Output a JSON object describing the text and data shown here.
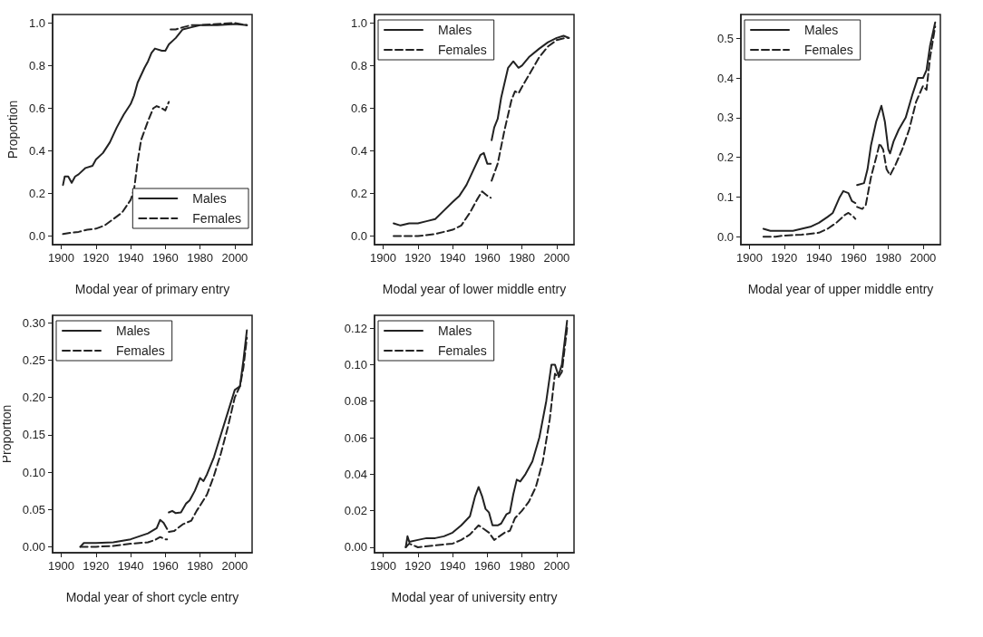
{
  "chart_data": [
    {
      "type": "line",
      "ylabel": "Proportion",
      "xlabel": "Modal year of primary entry",
      "xlim": [
        1895,
        2010
      ],
      "xticks": [
        1900,
        1920,
        1940,
        1960,
        1980,
        2000
      ],
      "ylim": [
        -0.04,
        1.04
      ],
      "yticks": [
        {
          "value": 0,
          "label": "0.0"
        },
        0.2,
        0.4,
        0.6,
        0.8,
        {
          "value": 1,
          "label": "1.0"
        }
      ],
      "grid": false,
      "legend": "bottom right",
      "marker": "none",
      "series": [
        {
          "name": "Males",
          "color": "#222222",
          "line_style": "solid",
          "x": [
            1901,
            1902,
            1904,
            1906,
            1908,
            1910,
            1914,
            1918,
            1920,
            1924,
            1928,
            1932,
            1936,
            1940,
            1942,
            1944,
            1948,
            1950,
            1952,
            1954,
            1958,
            1960,
            1962,
            1966,
            1970,
            1975,
            1980,
            1990,
            2000,
            2007
          ],
          "values": [
            0.24,
            0.28,
            0.28,
            0.25,
            0.28,
            0.29,
            0.32,
            0.33,
            0.36,
            0.39,
            0.44,
            0.51,
            0.57,
            0.62,
            0.66,
            0.72,
            0.79,
            0.82,
            0.86,
            0.88,
            0.87,
            0.87,
            0.9,
            0.93,
            0.97,
            0.98,
            0.99,
            0.99,
            0.995,
            0.99
          ]
        },
        {
          "name": "Females",
          "color": "#222222",
          "line_style": "dashed",
          "x": [
            1901,
            1905,
            1910,
            1915,
            1920,
            1925,
            1930,
            1935,
            1940,
            1942,
            1944,
            1946,
            1950,
            1953,
            1955,
            1958,
            1960,
            1962,
            1962.5,
            1963,
            1966,
            1970,
            1975,
            1980,
            2000,
            2007
          ],
          "values": [
            0.01,
            0.015,
            0.02,
            0.03,
            0.035,
            0.05,
            0.08,
            0.11,
            0.17,
            0.22,
            0.35,
            0.45,
            0.54,
            0.6,
            0.61,
            0.6,
            0.59,
            0.63,
            null,
            0.97,
            0.97,
            0.98,
            0.99,
            0.99,
            1.0,
            0.99
          ]
        }
      ]
    },
    {
      "type": "line",
      "xlabel": "Modal year of lower middle entry",
      "xlim": [
        1895,
        2010
      ],
      "xticks": [
        1900,
        1920,
        1940,
        1960,
        1980,
        2000
      ],
      "ylim": [
        -0.04,
        1.04
      ],
      "yticks": [
        {
          "value": 0,
          "label": "0.0"
        },
        0.2,
        0.4,
        0.6,
        0.8,
        {
          "value": 1,
          "label": "1.0"
        }
      ],
      "grid": false,
      "legend": "top left",
      "marker": "none",
      "series": [
        {
          "name": "Males",
          "color": "#222222",
          "line_style": "solid",
          "x": [
            1906,
            1910,
            1915,
            1920,
            1925,
            1930,
            1935,
            1940,
            1944,
            1948,
            1952,
            1956,
            1958,
            1960,
            1962,
            1962.3,
            1962.5,
            1964,
            1966,
            1968,
            1970,
            1972,
            1975,
            1978,
            1980,
            1984,
            1990,
            1995,
            2000,
            2004,
            2007
          ],
          "values": [
            0.06,
            0.05,
            0.06,
            0.06,
            0.07,
            0.08,
            0.12,
            0.16,
            0.19,
            0.24,
            0.31,
            0.38,
            0.39,
            0.34,
            0.34,
            null,
            0.45,
            0.51,
            0.55,
            0.65,
            0.72,
            0.79,
            0.82,
            0.79,
            0.8,
            0.84,
            0.88,
            0.91,
            0.93,
            0.94,
            0.93
          ]
        },
        {
          "name": "Females",
          "color": "#222222",
          "line_style": "dashed",
          "x": [
            1906,
            1915,
            1920,
            1930,
            1940,
            1945,
            1950,
            1954,
            1957,
            1960,
            1962,
            1962.3,
            1962.5,
            1966,
            1970,
            1974,
            1976,
            1978,
            1980,
            1985,
            1990,
            1995,
            2000,
            2005,
            2007
          ],
          "values": [
            0,
            0,
            0,
            0.01,
            0.03,
            0.05,
            0.11,
            0.17,
            0.21,
            0.19,
            0.18,
            null,
            0.26,
            0.34,
            0.5,
            0.64,
            0.68,
            0.67,
            0.7,
            0.77,
            0.84,
            0.89,
            0.92,
            0.93,
            0.93
          ]
        }
      ]
    },
    {
      "type": "line",
      "xlabel": "Modal year of upper middle entry",
      "xlim": [
        1895,
        2010
      ],
      "xticks": [
        1900,
        1920,
        1940,
        1960,
        1980,
        2000
      ],
      "ylim": [
        -0.02,
        0.56
      ],
      "yticks": [
        {
          "value": 0,
          "label": "0.0"
        },
        0.1,
        0.2,
        0.3,
        0.4,
        0.5
      ],
      "grid": false,
      "legend": "top left",
      "marker": "none",
      "series": [
        {
          "name": "Males",
          "color": "#222222",
          "line_style": "solid",
          "x": [
            1908,
            1912,
            1920,
            1925,
            1930,
            1935,
            1940,
            1945,
            1948,
            1952,
            1954,
            1957,
            1959,
            1961,
            1961.5,
            1962,
            1966,
            1968,
            1970,
            1973,
            1976,
            1978,
            1980,
            1981,
            1983,
            1986,
            1990,
            1994,
            1997,
            2000,
            2002,
            2004,
            2007
          ],
          "values": [
            0.02,
            0.015,
            0.015,
            0.015,
            0.02,
            0.025,
            0.035,
            0.05,
            0.06,
            0.1,
            0.115,
            0.11,
            0.09,
            0.085,
            null,
            0.13,
            0.135,
            0.17,
            0.23,
            0.29,
            0.33,
            0.29,
            0.22,
            0.21,
            0.24,
            0.27,
            0.3,
            0.36,
            0.4,
            0.4,
            0.42,
            0.48,
            0.54
          ]
        },
        {
          "name": "Females",
          "color": "#222222",
          "line_style": "dashed",
          "x": [
            1908,
            1915,
            1920,
            1930,
            1940,
            1945,
            1950,
            1955,
            1957,
            1960,
            1961,
            1961.5,
            1962,
            1965,
            1967,
            1970,
            1973,
            1975,
            1977,
            1979,
            1981,
            1984,
            1988,
            1992,
            1996,
            2000,
            2002,
            2004,
            2007
          ],
          "values": [
            0,
            0,
            0.003,
            0.005,
            0.01,
            0.02,
            0.035,
            0.055,
            0.06,
            0.05,
            0.045,
            null,
            0.075,
            0.07,
            0.08,
            0.15,
            0.2,
            0.235,
            0.22,
            0.17,
            0.155,
            0.18,
            0.22,
            0.27,
            0.34,
            0.38,
            0.37,
            0.45,
            0.53
          ]
        }
      ]
    },
    {
      "type": "line",
      "ylabel": "Proportion",
      "xlabel": "Modal year of short cycle entry",
      "xlim": [
        1895,
        2010
      ],
      "xticks": [
        1900,
        1920,
        1940,
        1960,
        1980,
        2000
      ],
      "ylim": [
        -0.008,
        0.31
      ],
      "yticks": [
        {
          "value": 0,
          "label": "0.00"
        },
        0.05,
        {
          "value": 0.1,
          "label": "0.10"
        },
        0.15,
        {
          "value": 0.2,
          "label": "0.20"
        },
        0.25,
        {
          "value": 0.3,
          "label": "0.30"
        }
      ],
      "grid": false,
      "legend": "top left",
      "marker": "none",
      "series": [
        {
          "name": "Males",
          "color": "#222222",
          "line_style": "solid",
          "x": [
            1911,
            1913,
            1920,
            1930,
            1940,
            1950,
            1955,
            1957,
            1959,
            1961,
            1961.5,
            1962,
            1964,
            1966,
            1969,
            1972,
            1974,
            1977,
            1980,
            1982,
            1984,
            1988,
            1992,
            1996,
            2000,
            2003,
            2005,
            2007
          ],
          "values": [
            0,
            0.005,
            0.005,
            0.006,
            0.01,
            0.018,
            0.025,
            0.036,
            0.032,
            0.024,
            null,
            0.046,
            0.048,
            0.045,
            0.046,
            0.058,
            0.062,
            0.075,
            0.092,
            0.088,
            0.097,
            0.12,
            0.15,
            0.18,
            0.21,
            0.215,
            0.25,
            0.29
          ]
        },
        {
          "name": "Females",
          "color": "#222222",
          "line_style": "dashed",
          "x": [
            1911,
            1920,
            1930,
            1940,
            1950,
            1954,
            1957,
            1960,
            1961,
            1961.5,
            1962,
            1965,
            1970,
            1975,
            1978,
            1980,
            1984,
            1988,
            1992,
            1996,
            2000,
            2003,
            2005,
            2007
          ],
          "values": [
            0,
            0,
            0.001,
            0.004,
            0.006,
            0.009,
            0.013,
            0.01,
            0.01,
            null,
            0.02,
            0.021,
            0.03,
            0.035,
            0.048,
            0.055,
            0.07,
            0.095,
            0.125,
            0.16,
            0.2,
            0.215,
            0.24,
            0.28
          ]
        }
      ]
    },
    {
      "type": "line",
      "xlabel": "Modal year of university entry",
      "xlim": [
        1895,
        2010
      ],
      "xticks": [
        1900,
        1920,
        1940,
        1960,
        1980,
        2000
      ],
      "ylim": [
        -0.003,
        0.127
      ],
      "yticks": [
        {
          "value": 0,
          "label": "0.00"
        },
        0.02,
        0.04,
        0.06,
        0.08,
        {
          "value": 0.1,
          "label": "0.10"
        },
        0.12
      ],
      "grid": false,
      "legend": "top left",
      "marker": "none",
      "series": [
        {
          "name": "Males",
          "color": "#222222",
          "line_style": "solid",
          "x": [
            1913,
            1914,
            1915,
            1920,
            1925,
            1930,
            1935,
            1940,
            1945,
            1950,
            1953,
            1955,
            1957,
            1959,
            1961,
            1963,
            1966,
            1968,
            1971,
            1973,
            1975,
            1977,
            1979,
            1982,
            1986,
            1990,
            1994,
            1997,
            1999,
            2001,
            2003,
            2006
          ],
          "values": [
            0,
            0.006,
            0.003,
            0.004,
            0.005,
            0.005,
            0.006,
            0.008,
            0.012,
            0.017,
            0.028,
            0.033,
            0.028,
            0.021,
            0.019,
            0.012,
            0.012,
            0.013,
            0.018,
            0.019,
            0.029,
            0.037,
            0.036,
            0.04,
            0.047,
            0.06,
            0.08,
            0.1,
            0.1,
            0.094,
            0.1,
            0.124
          ]
        },
        {
          "name": "Females",
          "color": "#222222",
          "line_style": "dashed",
          "x": [
            1913,
            1915,
            1920,
            1930,
            1940,
            1945,
            1950,
            1955,
            1958,
            1961,
            1964,
            1967,
            1970,
            1973,
            1976,
            1980,
            1984,
            1988,
            1992,
            1996,
            1999,
            2001,
            2003,
            2006
          ],
          "values": [
            0,
            0.002,
            0,
            0.001,
            0.002,
            0.004,
            0.007,
            0.012,
            0.01,
            0.008,
            0.004,
            0.006,
            0.008,
            0.009,
            0.016,
            0.02,
            0.025,
            0.033,
            0.047,
            0.07,
            0.095,
            0.093,
            0.096,
            0.12
          ]
        }
      ]
    }
  ]
}
